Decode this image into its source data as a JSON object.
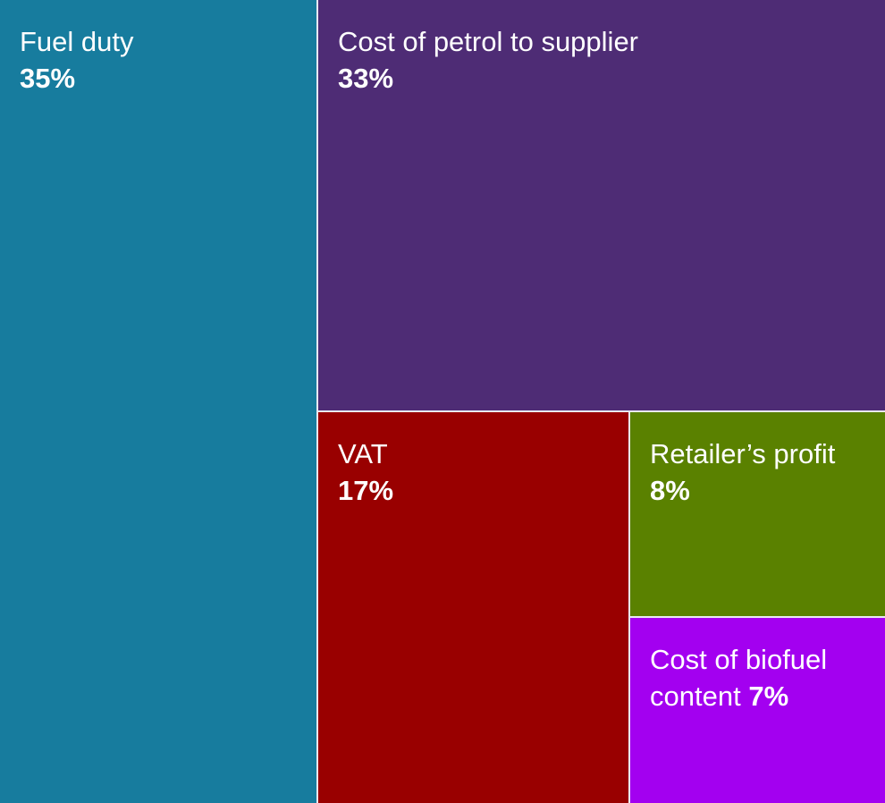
{
  "chart_data": {
    "type": "treemap",
    "title": "",
    "segments": [
      {
        "key": "fuel-duty",
        "name": "Fuel duty",
        "value": 35,
        "value_label": "35%",
        "color": "#177c9e",
        "label_style": "stacked"
      },
      {
        "key": "cost-petrol",
        "name": "Cost of petrol to supplier",
        "value": 33,
        "value_label": "33%",
        "color": "#4e2c75",
        "label_style": "stacked"
      },
      {
        "key": "vat",
        "name": "VAT",
        "value": 17,
        "value_label": "17%",
        "color": "#990000",
        "label_style": "stacked"
      },
      {
        "key": "retailer-profit",
        "name": "Retailer’s profit",
        "value": 8,
        "value_label": "8%",
        "color": "#5a8100",
        "label_style": "stacked"
      },
      {
        "key": "biofuel",
        "name": "Cost of biofuel content",
        "value": 7,
        "value_label": "7%",
        "color": "#a300f0",
        "label_style": "inline"
      }
    ],
    "unit": "%",
    "border_color": "#e9e9f3"
  }
}
